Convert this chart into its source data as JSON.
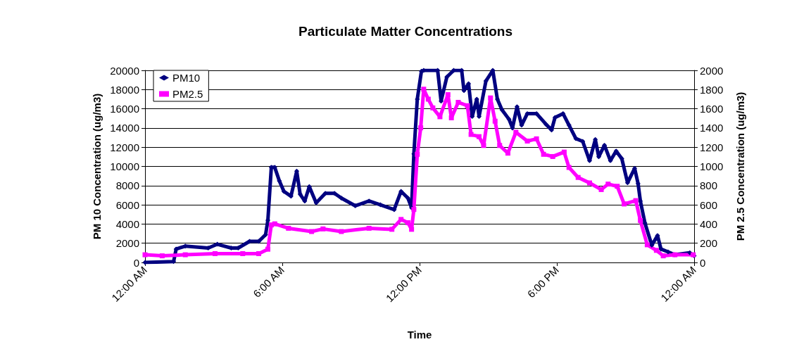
{
  "chart_data": {
    "type": "line",
    "title": "Particulate Matter Concentrations",
    "xlabel": "Time",
    "ylabel": "PM 10 Concentration (ug/m3)",
    "y2label": "PM 2.5 Concentration (ug/m3)",
    "xlim": [
      0,
      24
    ],
    "xticks": [
      {
        "value": 0,
        "label": "12:00 AM"
      },
      {
        "value": 6,
        "label": "6:00 AM"
      },
      {
        "value": 12,
        "label": "12:00 PM"
      },
      {
        "value": 18,
        "label": "6:00 PM"
      },
      {
        "value": 24,
        "label": "12:00 AM"
      }
    ],
    "ylim": [
      0,
      20000
    ],
    "yticks": [
      0,
      2000,
      4000,
      6000,
      8000,
      10000,
      12000,
      14000,
      16000,
      18000,
      20000
    ],
    "y2lim": [
      0,
      2000
    ],
    "y2ticks": [
      0,
      200,
      400,
      600,
      800,
      1000,
      1200,
      1400,
      1600,
      1800,
      2000
    ],
    "grid": "y",
    "legend": "top left",
    "series": [
      {
        "name": "PM10",
        "color": "#000080",
        "marker": "diamond",
        "x": [
          0,
          1.25,
          1.36,
          1.76,
          2.76,
          3.16,
          3.77,
          4.07,
          4.57,
          4.97,
          5.27,
          5.37,
          5.52,
          5.67,
          5.87,
          6.07,
          6.38,
          6.63,
          6.78,
          6.98,
          7.18,
          7.48,
          7.88,
          8.28,
          8.58,
          9.19,
          9.79,
          10.29,
          10.89,
          11.19,
          11.49,
          11.65,
          11.75,
          11.9,
          12.08,
          12.18,
          12.79,
          12.94,
          13.19,
          13.49,
          13.84,
          13.94,
          14.14,
          14.3,
          14.5,
          14.6,
          14.9,
          15.2,
          15.4,
          15.6,
          15.91,
          16.06,
          16.26,
          16.46,
          16.71,
          17.11,
          17.52,
          17.77,
          17.92,
          18.27,
          18.53,
          18.83,
          19.13,
          19.43,
          19.68,
          19.83,
          20.08,
          20.34,
          20.59,
          20.84,
          21.09,
          21.4,
          21.55,
          21.65,
          21.85,
          22.15,
          22.4,
          22.55,
          22.86,
          23.16,
          23.81,
          24
        ],
        "values": [
          0,
          100,
          1400,
          1700,
          1500,
          1900,
          1500,
          1500,
          2200,
          2200,
          2900,
          4400,
          9900,
          9900,
          8500,
          7400,
          6900,
          9500,
          7100,
          6400,
          7900,
          6200,
          7200,
          7200,
          6700,
          5900,
          6400,
          6000,
          5500,
          7400,
          6700,
          5700,
          11300,
          17000,
          19900,
          20000,
          20000,
          16800,
          19300,
          20000,
          20000,
          17900,
          18600,
          15200,
          17000,
          15200,
          18900,
          20000,
          17000,
          15900,
          14900,
          14000,
          16200,
          14300,
          15500,
          15500,
          14400,
          13800,
          15100,
          15500,
          14300,
          12900,
          12600,
          10600,
          12800,
          11000,
          12200,
          10600,
          11600,
          10800,
          8300,
          9800,
          8200,
          6400,
          4100,
          1800,
          2800,
          1400,
          1100,
          800,
          1000,
          700
        ]
      },
      {
        "name": "PM2.5",
        "color": "#ff00ff",
        "marker": "square",
        "axis": "y2",
        "x": [
          0,
          0.75,
          1.76,
          3.06,
          4.27,
          4.97,
          5.37,
          5.52,
          5.67,
          6.27,
          7.28,
          7.78,
          8.58,
          9.79,
          10.79,
          11.19,
          11.49,
          11.65,
          11.75,
          11.9,
          12.05,
          12.18,
          12.38,
          12.58,
          12.89,
          13.24,
          13.39,
          13.69,
          14.09,
          14.25,
          14.6,
          14.8,
          15.1,
          15.3,
          15.5,
          15.86,
          16.21,
          16.71,
          17.11,
          17.42,
          17.82,
          18.32,
          18.53,
          18.93,
          19.43,
          19.94,
          20.24,
          20.64,
          20.94,
          21.45,
          21.65,
          21.95,
          22.35,
          22.65,
          23.16,
          23.96
        ],
        "values": [
          80,
          69,
          80,
          92,
          92,
          92,
          138,
          391,
          402,
          356,
          322,
          349,
          322,
          356,
          345,
          448,
          414,
          345,
          552,
          1126,
          1402,
          1804,
          1700,
          1609,
          1517,
          1747,
          1506,
          1667,
          1632,
          1333,
          1310,
          1218,
          1713,
          1471,
          1218,
          1138,
          1356,
          1264,
          1287,
          1126,
          1103,
          1149,
          989,
          885,
          828,
          759,
          816,
          793,
          609,
          644,
          437,
          184,
          126,
          69,
          80,
          80
        ]
      }
    ]
  }
}
